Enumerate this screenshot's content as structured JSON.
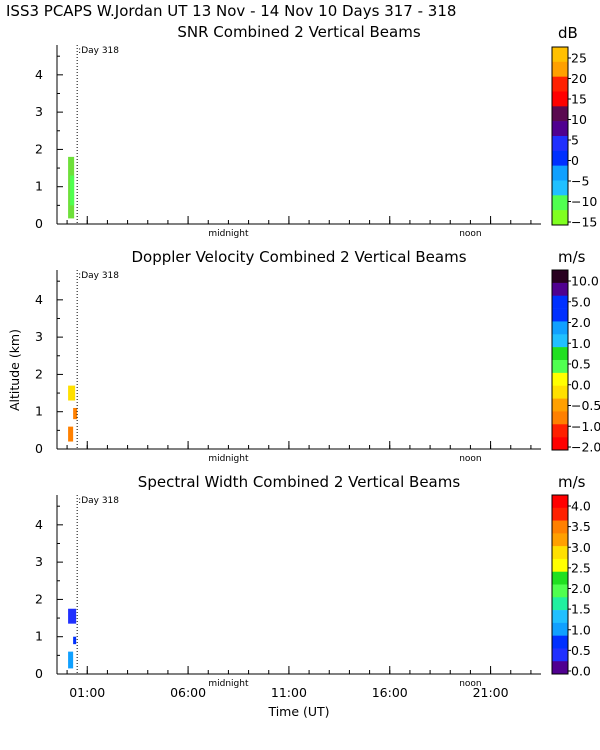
{
  "figure_title": "ISS3 PCAPS W.Jordan UT  13 Nov - 14 Nov 10 Days 317 - 318",
  "xlabel": "Time (UT)",
  "ylabel": "Altitude (km)",
  "chart_data": [
    {
      "type": "heatmap",
      "title": "SNR Combined 2 Vertical Beams",
      "ylim": [
        0,
        4.8
      ],
      "yticks": [
        "0",
        "1",
        "2",
        "3",
        "4"
      ],
      "day_label": ":Day 318",
      "markers": [
        {
          "x": 8,
          "label": "midnight"
        },
        {
          "x": 20,
          "label": "noon"
        }
      ],
      "colorbar": {
        "unit": "dB",
        "ticks": [
          "25",
          "20",
          "15",
          "10",
          "5",
          "0",
          "−5",
          "−10",
          "−15"
        ],
        "colors": [
          "#ffc000",
          "#ffa000",
          "#ff2000",
          "#ff0000",
          "#5a0a50",
          "#500090",
          "#2030ff",
          "#0030ff",
          "#10a0ff",
          "#20c0ff",
          "#50ff50",
          "#80ff20"
        ]
      },
      "cells": [
        {
          "x0": 0.05,
          "x1": 0.35,
          "y0": 0.15,
          "y1": 1.8,
          "color": "#6ee03a"
        },
        {
          "x0": 0.15,
          "x1": 0.35,
          "y0": 0.5,
          "y1": 1.3,
          "color": "#50ff50"
        }
      ]
    },
    {
      "type": "heatmap",
      "title": "Doppler Velocity Combined 2 Vertical Beams",
      "ylim": [
        0,
        4.8
      ],
      "yticks": [
        "0",
        "1",
        "2",
        "3",
        "4"
      ],
      "day_label": ":Day 318",
      "markers": [
        {
          "x": 8,
          "label": "midnight"
        },
        {
          "x": 20,
          "label": "noon"
        }
      ],
      "colorbar": {
        "unit": "m/s",
        "ticks": [
          "10.0",
          "5.0",
          "2.0",
          "1.0",
          "0.5",
          "0.0",
          "−0.5",
          "−1.0",
          "−2.0"
        ],
        "colors": [
          "#280020",
          "#500090",
          "#0030ff",
          "#0030ff",
          "#10a0ff",
          "#20c0ff",
          "#20e020",
          "#50ff50",
          "#ffff00",
          "#ffe000",
          "#ffa000",
          "#ff8000",
          "#ff2000",
          "#ff0000"
        ]
      },
      "cells": [
        {
          "x0": 0.05,
          "x1": 0.4,
          "y0": 1.3,
          "y1": 1.7,
          "color": "#ffe000"
        },
        {
          "x0": 0.3,
          "x1": 0.5,
          "y0": 0.8,
          "y1": 1.1,
          "color": "#ff8000"
        },
        {
          "x0": 0.05,
          "x1": 0.3,
          "y0": 0.2,
          "y1": 0.6,
          "color": "#ff8000"
        }
      ]
    },
    {
      "type": "heatmap",
      "title": "Spectral Width Combined 2 Vertical Beams",
      "ylim": [
        0,
        4.8
      ],
      "yticks": [
        "0",
        "1",
        "2",
        "3",
        "4"
      ],
      "day_label": ":Day 318",
      "markers": [
        {
          "x": 8,
          "label": "midnight"
        },
        {
          "x": 20,
          "label": "noon"
        }
      ],
      "colorbar": {
        "unit": "m/s",
        "ticks": [
          "4.0",
          "3.5",
          "3.0",
          "2.5",
          "2.0",
          "1.5",
          "1.0",
          "0.5",
          "0.0"
        ],
        "colors": [
          "#ff0000",
          "#ff2000",
          "#ff8000",
          "#ffa000",
          "#ffe000",
          "#ffff00",
          "#20e020",
          "#50ff50",
          "#20f0a0",
          "#20c0ff",
          "#10a0ff",
          "#0030ff",
          "#2030ff",
          "#500090"
        ]
      },
      "cells": [
        {
          "x0": 0.05,
          "x1": 0.45,
          "y0": 1.35,
          "y1": 1.75,
          "color": "#2030ff"
        },
        {
          "x0": 0.05,
          "x1": 0.3,
          "y0": 0.15,
          "y1": 0.6,
          "color": "#10a0ff"
        },
        {
          "x0": 0.3,
          "x1": 0.45,
          "y0": 0.8,
          "y1": 1.0,
          "color": "#0030ff"
        }
      ]
    }
  ],
  "xaxis": {
    "ticks": [
      {
        "x": 1,
        "label": "01:00"
      },
      {
        "x": 6,
        "label": "06:00"
      },
      {
        "x": 11,
        "label": "11:00"
      },
      {
        "x": 16,
        "label": "16:00"
      },
      {
        "x": 21,
        "label": "21:00"
      }
    ],
    "xlim": [
      -0.5,
      23.5
    ]
  }
}
